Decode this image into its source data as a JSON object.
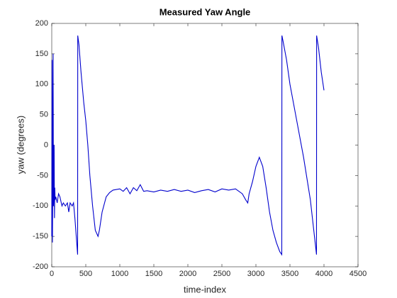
{
  "chart_data": {
    "type": "line",
    "title": "Measured Yaw Angle",
    "xlabel": "time-index",
    "ylabel": "yaw (degrees)",
    "xlim": [
      0,
      4500
    ],
    "ylim": [
      -200,
      200
    ],
    "xticks": [
      0,
      500,
      1000,
      1500,
      2000,
      2500,
      3000,
      3500,
      4000,
      4500
    ],
    "yticks": [
      -200,
      -150,
      -100,
      -50,
      0,
      50,
      100,
      150,
      200
    ],
    "x": [
      0,
      5,
      10,
      15,
      20,
      25,
      30,
      35,
      40,
      45,
      50,
      60,
      80,
      100,
      120,
      150,
      170,
      200,
      230,
      250,
      270,
      300,
      320,
      340,
      360,
      380,
      382,
      400,
      430,
      470,
      500,
      530,
      560,
      600,
      640,
      680,
      700,
      740,
      800,
      850,
      900,
      1000,
      1050,
      1100,
      1150,
      1200,
      1250,
      1300,
      1350,
      1400,
      1500,
      1600,
      1700,
      1800,
      1900,
      2000,
      2100,
      2200,
      2300,
      2400,
      2500,
      2600,
      2700,
      2800,
      2850,
      2880,
      2900,
      2950,
      3000,
      3050,
      3100,
      3150,
      3200,
      3250,
      3300,
      3350,
      3380,
      3382,
      3400,
      3450,
      3500,
      3600,
      3700,
      3800,
      3850,
      3890,
      3892,
      3920,
      3960,
      4000
    ],
    "series": [
      {
        "name": "yaw",
        "color": "#0000cd",
        "values": [
          -150,
          140,
          -160,
          -70,
          150,
          -100,
          -80,
          0,
          -120,
          -70,
          -90,
          -85,
          -95,
          -80,
          -85,
          -100,
          -95,
          -100,
          -95,
          -110,
          -95,
          -100,
          -95,
          -120,
          -150,
          -180,
          180,
          165,
          120,
          70,
          40,
          0,
          -50,
          -100,
          -140,
          -150,
          -140,
          -110,
          -85,
          -78,
          -74,
          -72,
          -76,
          -70,
          -80,
          -70,
          -75,
          -65,
          -76,
          -75,
          -77,
          -74,
          -76,
          -73,
          -76,
          -74,
          -78,
          -75,
          -73,
          -77,
          -72,
          -74,
          -72,
          -80,
          -90,
          -95,
          -80,
          -60,
          -35,
          -20,
          -35,
          -70,
          -110,
          -140,
          -160,
          -175,
          -180,
          180,
          170,
          140,
          100,
          40,
          -20,
          -90,
          -140,
          -180,
          180,
          160,
          120,
          90
        ]
      }
    ]
  }
}
